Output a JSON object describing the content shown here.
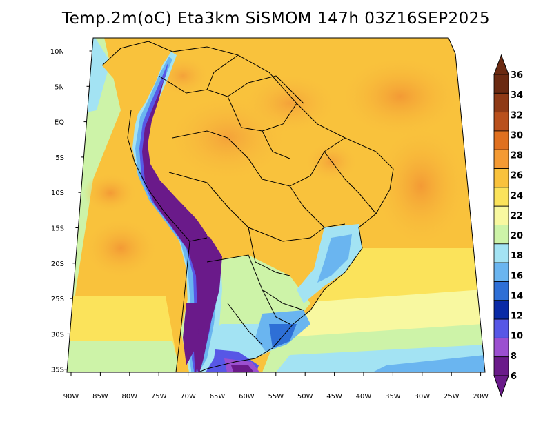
{
  "title": "Temp.2m(oC) Eta3km SiSMOM 147h 03Z16SEP2025",
  "axes": {
    "lat_labels": [
      "10N",
      "5N",
      "EQ",
      "5S",
      "10S",
      "15S",
      "20S",
      "25S",
      "30S",
      "35S"
    ],
    "lon_labels": [
      "90W",
      "85W",
      "80W",
      "75W",
      "70W",
      "65W",
      "60W",
      "55W",
      "50W",
      "45W",
      "40W",
      "35W",
      "30W",
      "25W",
      "20W"
    ]
  },
  "colorbar": {
    "labels": [
      "36",
      "34",
      "32",
      "30",
      "28",
      "26",
      "24",
      "22",
      "20",
      "18",
      "16",
      "14",
      "12",
      "10",
      "8",
      "6"
    ],
    "colors": [
      "#6b2a12",
      "#8f3a16",
      "#b9501c",
      "#e0701f",
      "#f49a33",
      "#f9c23c",
      "#fbe35b",
      "#f8f8a0",
      "#cdf3a8",
      "#a3e3f3",
      "#6ab5f0",
      "#2e6fd6",
      "#0a2aa6",
      "#5757e6",
      "#9b4fd0",
      "#6a1a8a"
    ]
  }
}
